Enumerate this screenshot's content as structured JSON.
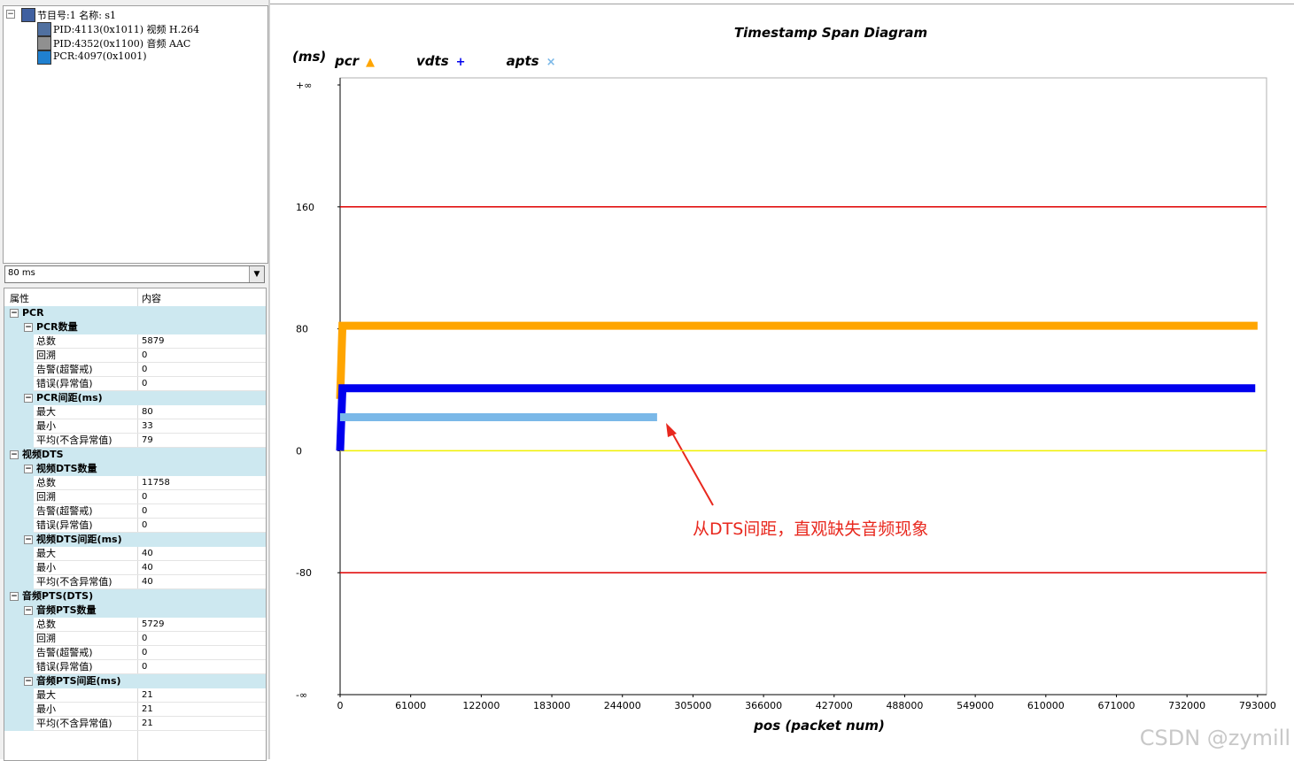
{
  "tree": {
    "nodes": [
      "节目号:1 名称: s1",
      "PID:4113(0x1011) 视频 H.264",
      "PID:4352(0x1100) 音频 AAC",
      "PCR:4097(0x1001)"
    ]
  },
  "dropdown": {
    "value": "80 ms"
  },
  "property_grid": {
    "headers": [
      "属性",
      "内容"
    ],
    "rows": [
      {
        "name": "PCR",
        "level": 0
      },
      {
        "name": "PCR数量",
        "level": 1
      },
      {
        "name": "总数",
        "value": "5879"
      },
      {
        "name": "回溯",
        "value": "0"
      },
      {
        "name": "告警(超警戒)",
        "value": "0"
      },
      {
        "name": "错误(异常值)",
        "value": "0"
      },
      {
        "name": "PCR间距(ms)",
        "level": 1
      },
      {
        "name": "最大",
        "value": "80"
      },
      {
        "name": "最小",
        "value": "33"
      },
      {
        "name": "平均(不含异常值)",
        "value": "79"
      },
      {
        "name": "视频DTS",
        "level": 0
      },
      {
        "name": "视频DTS数量",
        "level": 1
      },
      {
        "name": "总数",
        "value": "11758"
      },
      {
        "name": "回溯",
        "value": "0"
      },
      {
        "name": "告警(超警戒)",
        "value": "0"
      },
      {
        "name": "错误(异常值)",
        "value": "0"
      },
      {
        "name": "视频DTS间距(ms)",
        "level": 1
      },
      {
        "name": "最大",
        "value": "40"
      },
      {
        "name": "最小",
        "value": "40"
      },
      {
        "name": "平均(不含异常值)",
        "value": "40"
      },
      {
        "name": "音频PTS(DTS)",
        "level": 0
      },
      {
        "name": "音频PTS数量",
        "level": 1
      },
      {
        "name": "总数",
        "value": "5729"
      },
      {
        "name": "回溯",
        "value": "0"
      },
      {
        "name": "告警(超警戒)",
        "value": "0"
      },
      {
        "name": "错误(异常值)",
        "value": "0"
      },
      {
        "name": "音频PTS间距(ms)",
        "level": 1
      },
      {
        "name": "最大",
        "value": "21"
      },
      {
        "name": "最小",
        "value": "21"
      },
      {
        "name": "平均(不含异常值)",
        "value": "21"
      }
    ]
  },
  "chart_data": {
    "type": "line",
    "title": "Timestamp Span Diagram",
    "ylabel": "(ms)",
    "xlabel": "pos (packet num)",
    "xlim": [
      0,
      800000
    ],
    "xticks": [
      0,
      61000,
      122000,
      183000,
      244000,
      305000,
      366000,
      427000,
      488000,
      549000,
      610000,
      671000,
      732000,
      793000
    ],
    "ylim": [
      -160,
      240
    ],
    "yticks": [
      {
        "value": 240,
        "label": "+∞"
      },
      160,
      80,
      0,
      -80,
      {
        "value": -160,
        "label": "-∞"
      }
    ],
    "reference_lines": [
      {
        "value": 160,
        "color": "#e00000"
      },
      {
        "value": -80,
        "color": "#e00000"
      },
      {
        "value": 0,
        "color": "#f0f000"
      }
    ],
    "series": [
      {
        "name": "pcr",
        "color": "#ffa500",
        "marker": "▲",
        "x": [
          0,
          2000,
          793000
        ],
        "values": [
          34,
          82,
          82
        ]
      },
      {
        "name": "vdts",
        "color": "#0000ee",
        "marker": "+",
        "x": [
          0,
          2000,
          791000
        ],
        "values": [
          0,
          41,
          41
        ]
      },
      {
        "name": "apts",
        "color": "#7ab8e8",
        "marker": "×",
        "x": [
          0,
          274000
        ],
        "values": [
          22,
          22
        ]
      }
    ],
    "annotation": "从DTS间距，直观缺失音频现象"
  },
  "watermark": "CSDN @zymill"
}
